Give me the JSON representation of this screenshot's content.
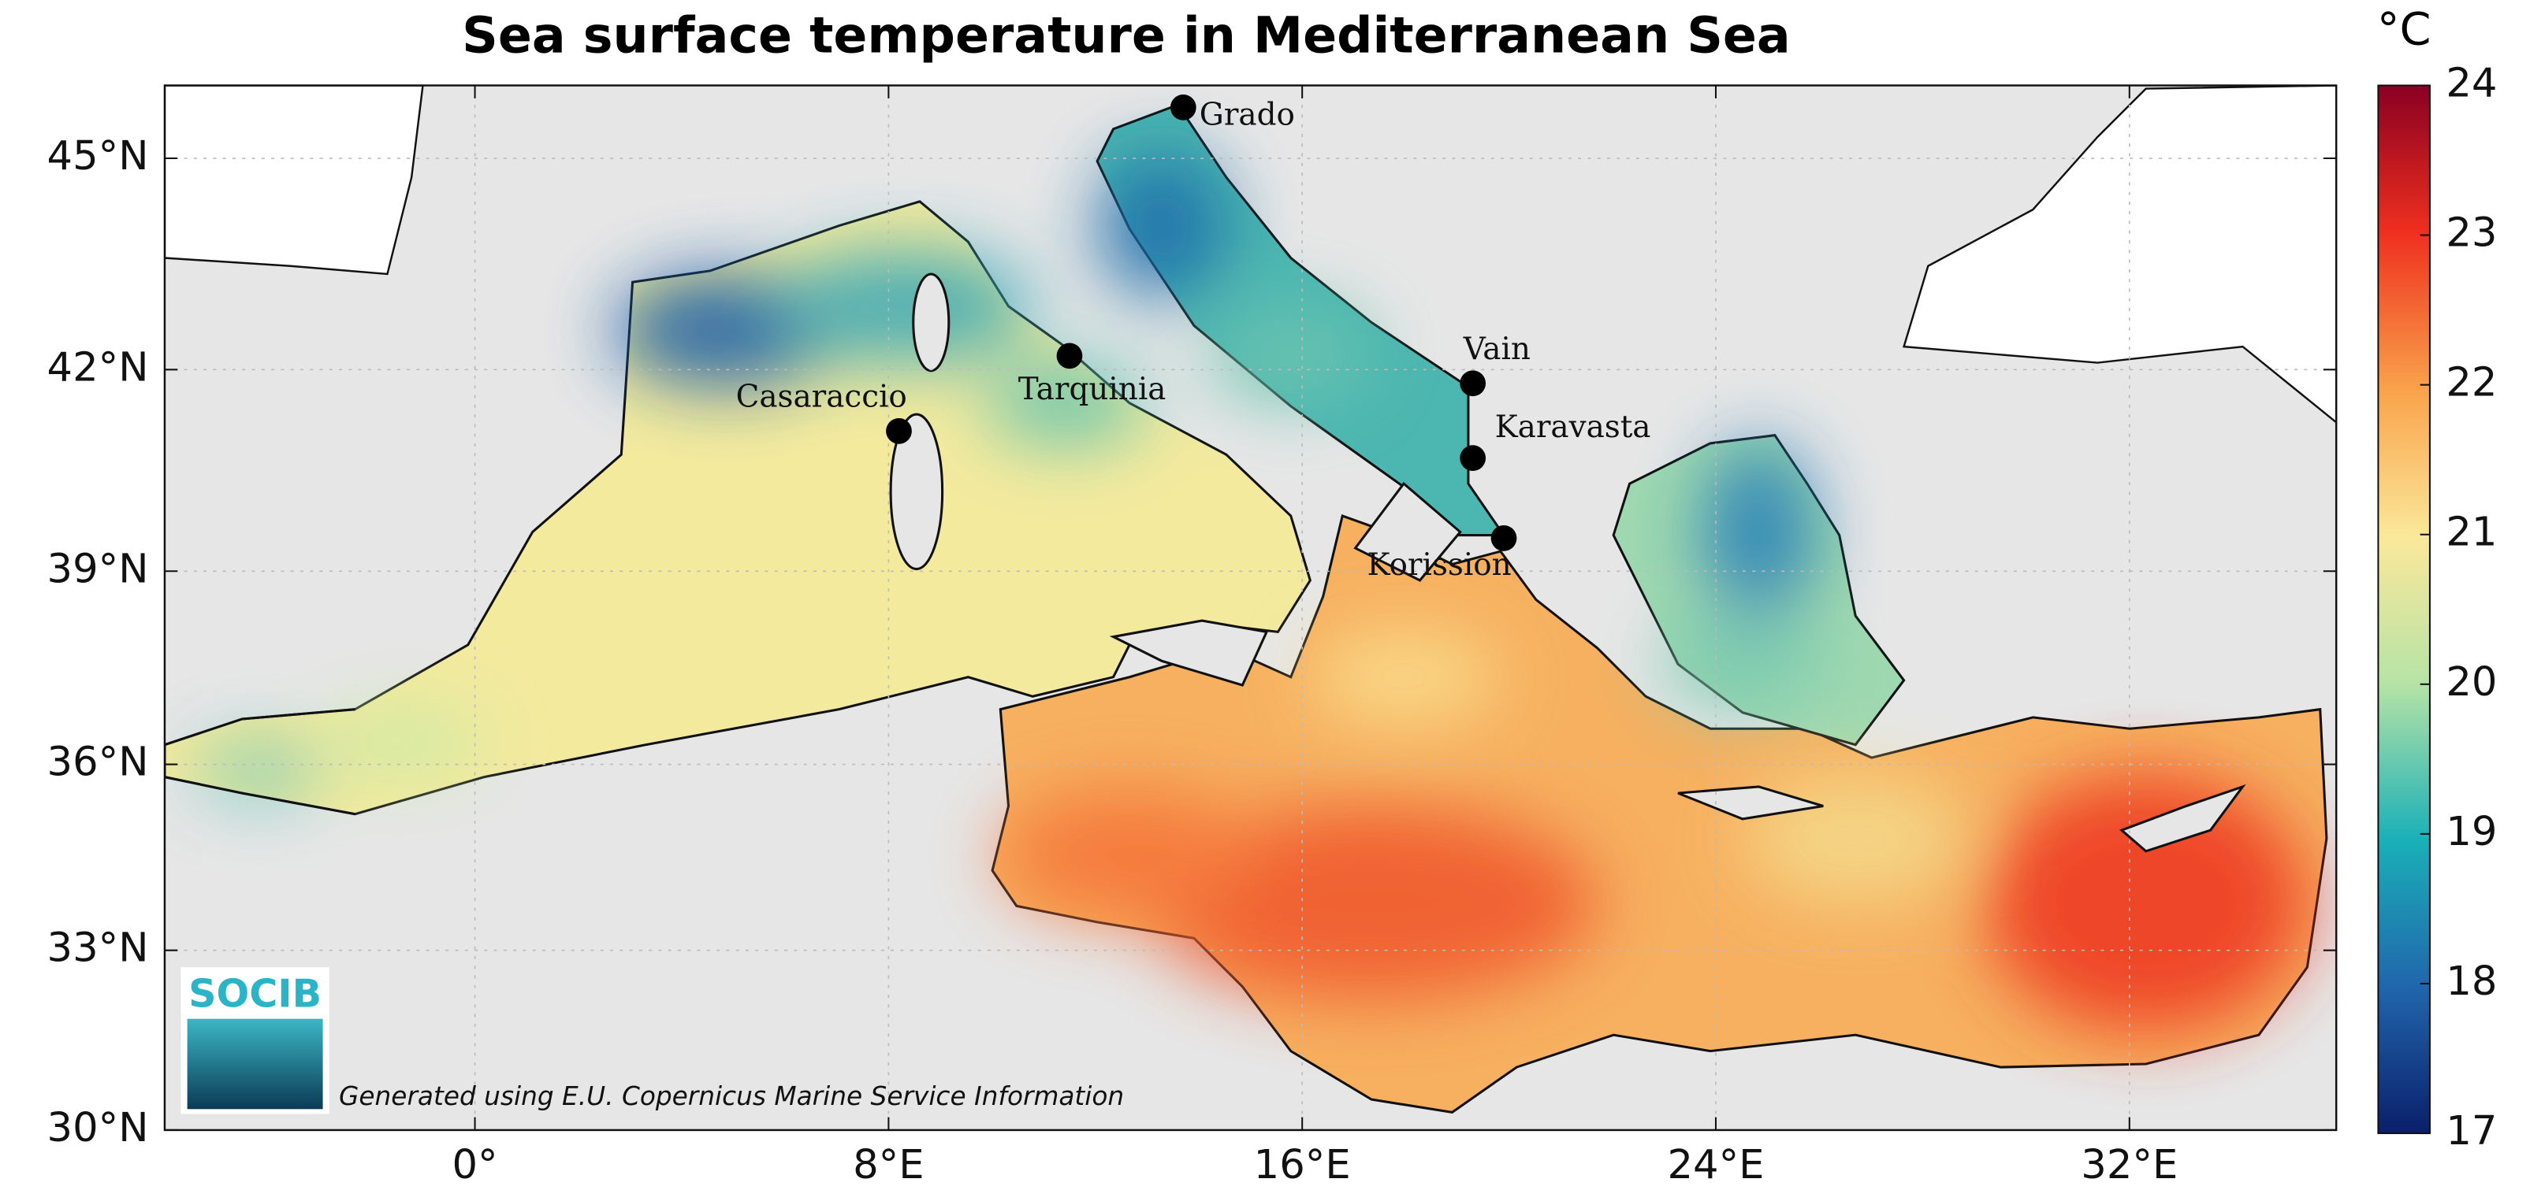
{
  "title": "Sea surface temperature in Mediterranean Sea",
  "map": {
    "lon_range": [
      -6,
      36
    ],
    "lat_range": [
      30,
      46
    ],
    "lon_ticks": [
      {
        "value": 0,
        "label": "0°"
      },
      {
        "value": 8,
        "label": "8°E"
      },
      {
        "value": 16,
        "label": "16°E"
      },
      {
        "value": 24,
        "label": "24°E"
      },
      {
        "value": 32,
        "label": "32°E"
      }
    ],
    "lat_ticks": [
      {
        "value": 30,
        "label": "30°N"
      },
      {
        "value": 33,
        "label": "33°N"
      },
      {
        "value": 36,
        "label": "36°N"
      },
      {
        "value": 39,
        "label": "39°N"
      },
      {
        "value": 42,
        "label": "42°N"
      },
      {
        "value": 45,
        "label": "45°N"
      }
    ]
  },
  "colorbar": {
    "unit": "°C",
    "range": [
      17,
      24
    ],
    "ticks": [
      17,
      18,
      19,
      20,
      21,
      22,
      23,
      24
    ]
  },
  "stations": [
    {
      "name": "Grado",
      "lon": 13.7,
      "lat": 45.7
    },
    {
      "name": "Tarquinia",
      "lon": 11.5,
      "lat": 42.2
    },
    {
      "name": "Casaraccio",
      "lon": 8.2,
      "lat": 41.1
    },
    {
      "name": "Vain",
      "lon": 19.3,
      "lat": 41.8
    },
    {
      "name": "Karavasta",
      "lon": 19.3,
      "lat": 40.7
    },
    {
      "name": "Korission",
      "lon": 19.9,
      "lat": 39.5
    }
  ],
  "attribution": "Generated using E.U. Copernicus Marine Service Information",
  "logo": "SOCIB"
}
